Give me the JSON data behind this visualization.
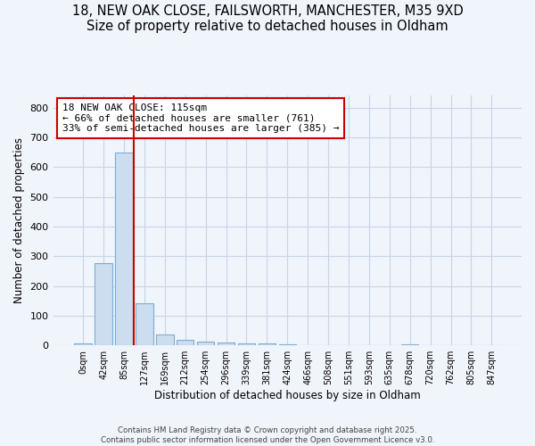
{
  "title_line1": "18, NEW OAK CLOSE, FAILSWORTH, MANCHESTER, M35 9XD",
  "title_line2": "Size of property relative to detached houses in Oldham",
  "xlabel": "Distribution of detached houses by size in Oldham",
  "ylabel": "Number of detached properties",
  "bar_color": "#ccddf0",
  "bar_edge_color": "#7aadd4",
  "background_color": "#f0f4fb",
  "plot_bg_color": "#f0f4fb",
  "grid_color": "#c8d4e8",
  "annotation_text": "18 NEW OAK CLOSE: 115sqm\n← 66% of detached houses are smaller (761)\n33% of semi-detached houses are larger (385) →",
  "property_line_color": "#cc0000",
  "categories": [
    "0sqm",
    "42sqm",
    "85sqm",
    "127sqm",
    "169sqm",
    "212sqm",
    "254sqm",
    "296sqm",
    "339sqm",
    "381sqm",
    "424sqm",
    "466sqm",
    "508sqm",
    "551sqm",
    "593sqm",
    "635sqm",
    "678sqm",
    "720sqm",
    "762sqm",
    "805sqm",
    "847sqm"
  ],
  "values": [
    8,
    278,
    648,
    142,
    37,
    18,
    12,
    10,
    8,
    8,
    5,
    0,
    0,
    0,
    0,
    0,
    5,
    0,
    0,
    0,
    0
  ],
  "ylim": [
    0,
    840
  ],
  "yticks": [
    0,
    100,
    200,
    300,
    400,
    500,
    600,
    700,
    800
  ],
  "footnote": "Contains HM Land Registry data © Crown copyright and database right 2025.\nContains public sector information licensed under the Open Government Licence v3.0.",
  "title_fontsize": 10.5,
  "annotation_box_color": "#ffffff",
  "annotation_box_edge_color": "#cc0000"
}
